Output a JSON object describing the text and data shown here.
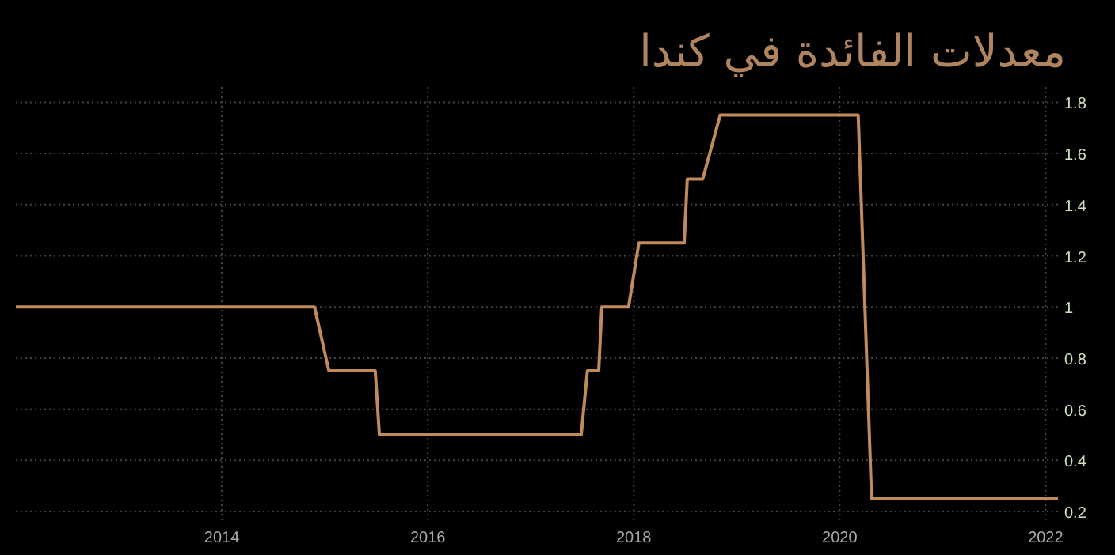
{
  "chart_data": {
    "type": "step",
    "title": "معدلات الفائدة في كندا",
    "x": [
      2012.0,
      2014.9,
      2015.04,
      2015.49,
      2015.53,
      2017.49,
      2017.55,
      2017.66,
      2017.69,
      2017.95,
      2018.05,
      2018.49,
      2018.52,
      2018.67,
      2018.84,
      2020.18,
      2020.31,
      2022.12
    ],
    "series": [
      {
        "color": "#c08a5a",
        "values": [
          1.0,
          1.0,
          0.75,
          0.75,
          0.5,
          0.5,
          0.75,
          0.75,
          1.0,
          1.0,
          1.25,
          1.25,
          1.5,
          1.5,
          1.75,
          1.75,
          0.25,
          0.25
        ]
      }
    ],
    "xlim": [
      2012.0,
      2022.12
    ],
    "xticks": [
      2014,
      2016,
      2018,
      2020,
      2022
    ],
    "ylim": [
      0.16,
      1.86
    ],
    "yticks": [
      0.2,
      0.4,
      0.6,
      0.8,
      1,
      1.2,
      1.4,
      1.6,
      1.8
    ],
    "grid": true
  }
}
